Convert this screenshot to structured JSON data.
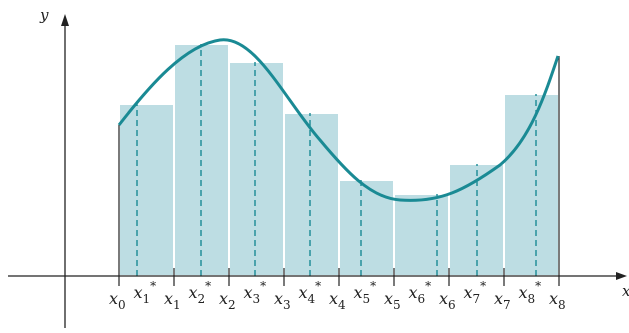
{
  "figure": {
    "y_axis_label": "y",
    "x_axis_label": "x",
    "partition_labels": [
      {
        "base": "x",
        "sub": "0"
      },
      {
        "base": "x",
        "sub": "1"
      },
      {
        "base": "x",
        "sub": "2"
      },
      {
        "base": "x",
        "sub": "3"
      },
      {
        "base": "x",
        "sub": "4"
      },
      {
        "base": "x",
        "sub": "5"
      },
      {
        "base": "x",
        "sub": "6"
      },
      {
        "base": "x",
        "sub": "7"
      },
      {
        "base": "x",
        "sub": "8"
      }
    ],
    "sample_labels": [
      {
        "base": "x",
        "sub": "1",
        "sup": "*"
      },
      {
        "base": "x",
        "sub": "2",
        "sup": "*"
      },
      {
        "base": "x",
        "sub": "3",
        "sup": "*"
      },
      {
        "base": "x",
        "sub": "4",
        "sup": "*"
      },
      {
        "base": "x",
        "sub": "5",
        "sup": "*"
      },
      {
        "base": "x",
        "sub": "6",
        "sup": "*"
      },
      {
        "base": "x",
        "sub": "7",
        "sup": "*"
      },
      {
        "base": "x",
        "sub": "8",
        "sup": "*"
      }
    ],
    "colors": {
      "curve": "#1a8a94",
      "rect_fill": "#bddde3",
      "rect_divider": "#ffffff",
      "sample_line": "#1a8a94",
      "axis": "#222222",
      "partition_tick": "#222222"
    }
  }
}
